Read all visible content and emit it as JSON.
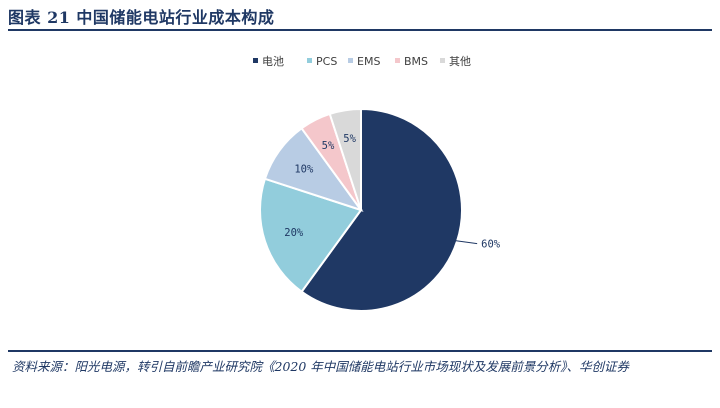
{
  "title": "图表 21 中国储能电站行业成本构成",
  "source": "资料来源：阳光电源，转引自前瞻产业研究院《2020 年中国储能电站行业市场现状及发展前景分析》、华创证券",
  "chart_data": {
    "type": "pie",
    "categories": [
      "电池",
      "PCS",
      "EMS",
      "BMS",
      "其他"
    ],
    "values": [
      60,
      20,
      10,
      5,
      5
    ],
    "labels": [
      "60%",
      "20%",
      "10%",
      "5%",
      "5%"
    ],
    "colors": [
      "#1f3864",
      "#92cddc",
      "#b8cce4",
      "#f4c7cb",
      "#d9d9d9"
    ],
    "legend_position": "top-right"
  }
}
